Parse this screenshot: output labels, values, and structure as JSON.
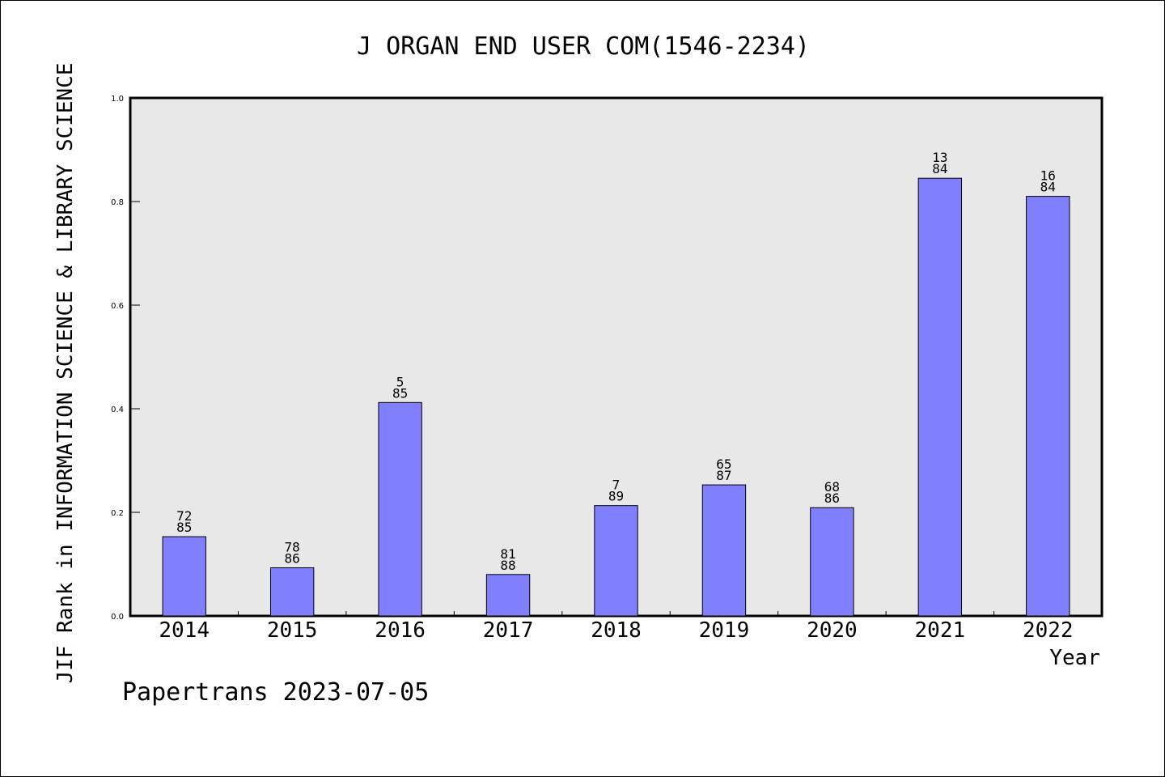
{
  "chart_data": {
    "type": "bar",
    "title": "J ORGAN END USER COM(1546-2234)",
    "xlabel": "Year",
    "ylabel": "JIF Rank in INFORMATION SCIENCE & LIBRARY SCIENCE",
    "ylim": [
      0,
      1.0
    ],
    "yticks": [
      "0.0",
      "0.2",
      "0.4",
      "0.6",
      "0.8",
      "1.0"
    ],
    "ytick_values": [
      0,
      0.2,
      0.4,
      0.6,
      0.8,
      1.0
    ],
    "categories": [
      "2014",
      "2015",
      "2016",
      "2017",
      "2018",
      "2019",
      "2020",
      "2021",
      "2022"
    ],
    "values": [
      0.153,
      0.093,
      0.412,
      0.08,
      0.213,
      0.253,
      0.209,
      0.845,
      0.81
    ],
    "rank_labels": [
      "72",
      "78",
      "5",
      "81",
      "7",
      "65",
      "68",
      "13",
      "16"
    ],
    "total_labels": [
      "85",
      "86",
      "85",
      "88",
      "89",
      "87",
      "86",
      "84",
      "84"
    ],
    "grid": false,
    "colors": {
      "bar": "#8080ff",
      "plot_bg": "#e8e8e8",
      "axis": "#000000"
    }
  },
  "footer": {
    "text": "Papertrans 2023-07-05"
  }
}
